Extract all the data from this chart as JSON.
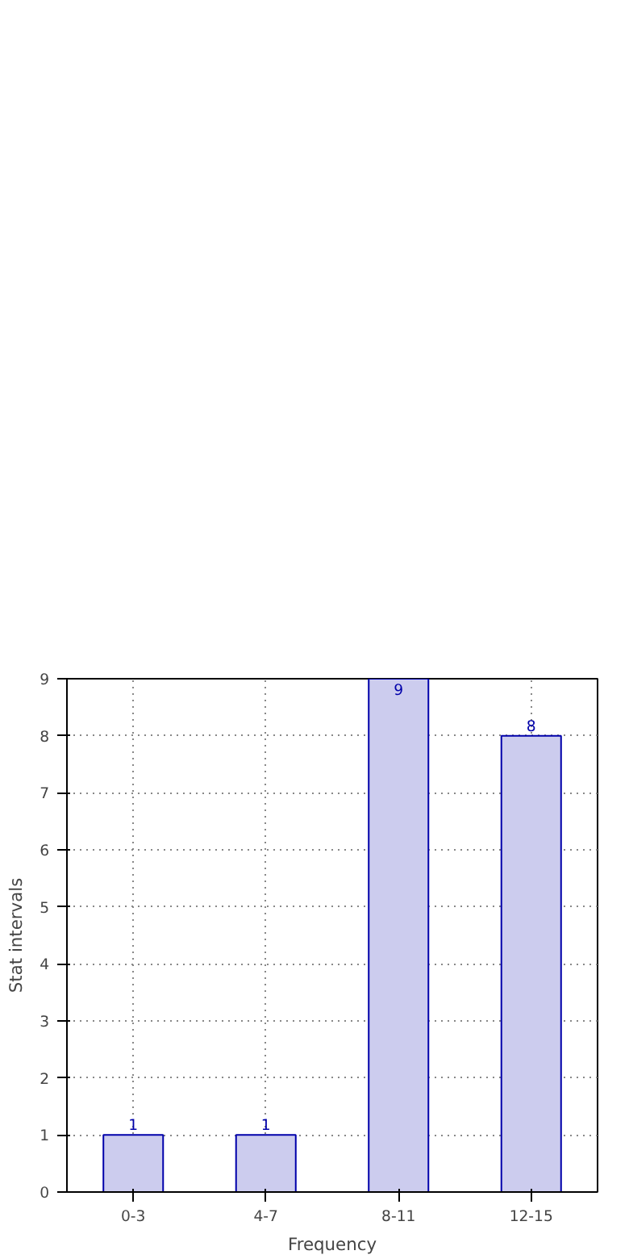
{
  "chart_data": {
    "type": "bar",
    "xlabel": "Frequency",
    "ylabel": "Stat intervals",
    "categories": [
      "0-3",
      "4-7",
      "8-11",
      "12-15"
    ],
    "values": [
      1,
      1,
      9,
      8
    ],
    "color": "#ccccee",
    "ylim": [
      0,
      9
    ],
    "yticks": [
      0,
      1,
      2,
      3,
      4,
      5,
      6,
      7,
      8,
      9
    ],
    "grid": true,
    "data_labels": true
  }
}
